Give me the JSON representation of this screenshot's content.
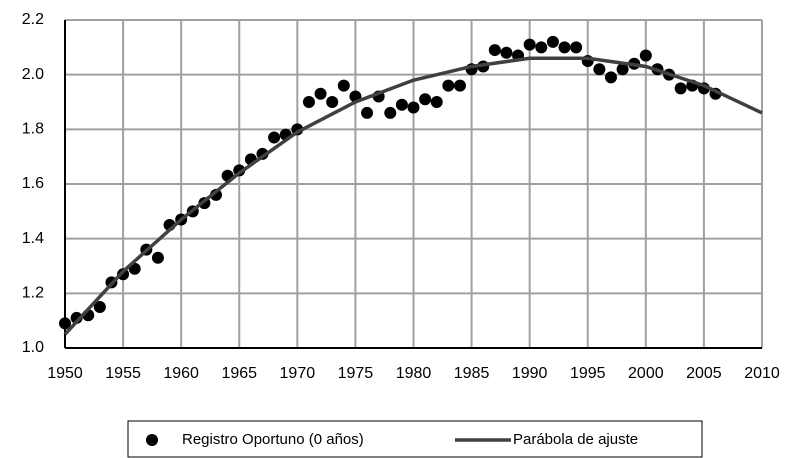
{
  "chart_data": {
    "type": "scatter",
    "series": [
      {
        "name": "Registro Oportuno (0 años)",
        "type": "scatter",
        "color": "#000000",
        "x": [
          1950,
          1951,
          1952,
          1953,
          1954,
          1955,
          1956,
          1957,
          1958,
          1959,
          1960,
          1961,
          1962,
          1963,
          1964,
          1965,
          1966,
          1967,
          1968,
          1969,
          1970,
          1971,
          1972,
          1973,
          1974,
          1975,
          1976,
          1977,
          1978,
          1979,
          1980,
          1981,
          1982,
          1983,
          1984,
          1985,
          1986,
          1987,
          1988,
          1989,
          1990,
          1991,
          1992,
          1993,
          1994,
          1995,
          1996,
          1997,
          1998,
          1999,
          2000,
          2001,
          2002,
          2003,
          2004,
          2005,
          2006
        ],
        "values": [
          1.09,
          1.11,
          1.12,
          1.15,
          1.24,
          1.27,
          1.29,
          1.36,
          1.33,
          1.45,
          1.47,
          1.5,
          1.53,
          1.56,
          1.63,
          1.65,
          1.69,
          1.71,
          1.77,
          1.78,
          1.8,
          1.9,
          1.93,
          1.9,
          1.96,
          1.92,
          1.86,
          1.92,
          1.86,
          1.89,
          1.88,
          1.91,
          1.9,
          1.96,
          1.96,
          2.02,
          2.03,
          2.09,
          2.08,
          2.07,
          2.11,
          2.1,
          2.12,
          2.1,
          2.1,
          2.05,
          2.02,
          1.99,
          2.02,
          2.04,
          2.07,
          2.02,
          2.0,
          1.95,
          1.96,
          1.95,
          1.93
        ]
      },
      {
        "name": "Parábola de ajuste",
        "type": "line",
        "color": "#404040",
        "x": [
          1950,
          1955,
          1960,
          1965,
          1970,
          1975,
          1980,
          1985,
          1990,
          1995,
          2000,
          2005,
          2010
        ],
        "values": [
          1.05,
          1.28,
          1.47,
          1.64,
          1.79,
          1.9,
          1.98,
          2.03,
          2.06,
          2.06,
          2.03,
          1.96,
          1.86
        ]
      }
    ],
    "xlim": [
      1950,
      2010
    ],
    "xticks": [
      1950,
      1955,
      1960,
      1965,
      1970,
      1975,
      1980,
      1985,
      1990,
      1995,
      2000,
      2005,
      2010
    ],
    "ylim": [
      1.0,
      2.2
    ],
    "yticks": [
      {
        "value": 1.0,
        "label": "1.0"
      },
      1.2,
      1.4,
      1.6,
      1.8,
      {
        "value": 2.0,
        "label": "2.0"
      },
      2.2
    ],
    "grid": true,
    "legend": "bottom"
  }
}
